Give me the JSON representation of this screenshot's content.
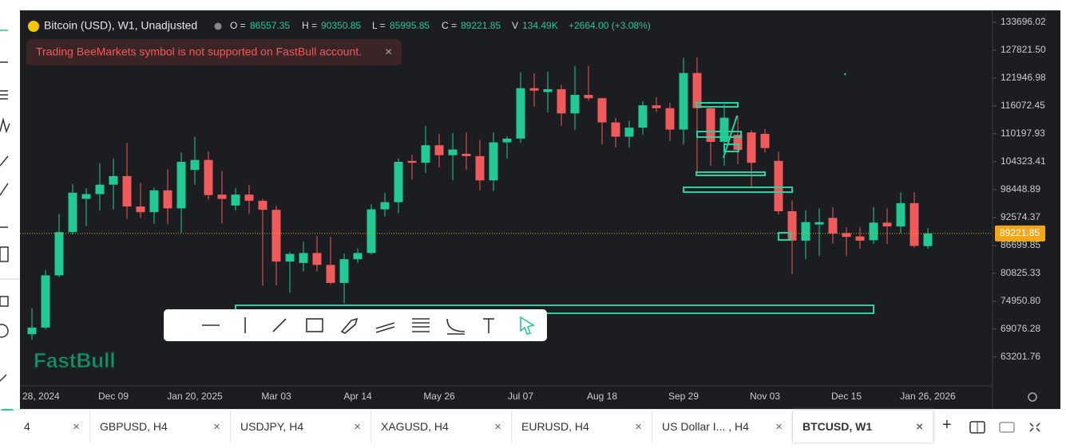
{
  "header": {
    "symbol": "Bitcoin (USD), W1, Unadjusted",
    "o_label": "O =",
    "o": "86557.35",
    "h_label": "H =",
    "h": "90350.85",
    "l_label": "L =",
    "l": "85995.85",
    "c_label": "C =",
    "c": "89221.85",
    "v_label": "V",
    "v": "134.49K",
    "change": "+2664.00 (+3.08%)"
  },
  "alert": "Trading BeeMarkets symbol is not supported on FastBull account.",
  "logo": "FastBull",
  "tabs": [
    "4",
    "GBPUSD, H4",
    "USDJPY, H4",
    "XAGUSD, H4",
    "EURUSD, H4",
    "US Dollar I... , H4",
    "BTCUSD, W1"
  ],
  "chart_data": {
    "type": "candlestick",
    "title": "Bitcoin (USD), W1, Unadjusted",
    "categories": [
      "28, 2024",
      null,
      null,
      null,
      null,
      null,
      "Dec 09",
      null,
      null,
      null,
      null,
      null,
      "Jan 20, 2025",
      null,
      null,
      null,
      null,
      null,
      "Mar 03",
      null,
      null,
      null,
      null,
      null,
      "Apr 14",
      null,
      null,
      null,
      null,
      null,
      "May 26",
      null,
      null,
      null,
      null,
      null,
      "Jul 07",
      null,
      null,
      null,
      null,
      null,
      "Aug 18",
      null,
      null,
      null,
      null,
      null,
      "Sep 29",
      null,
      null,
      null,
      null,
      null,
      "Nov 03",
      null,
      null,
      null,
      null,
      null,
      "Dec 15",
      null,
      null,
      null,
      null,
      null,
      "Jan 26, 2026"
    ],
    "open": [
      68000,
      69400,
      80400,
      89500,
      96500,
      97500,
      99500,
      101300,
      94900,
      93700,
      98300,
      94500,
      102600,
      104700,
      97400,
      95100,
      97400,
      96100,
      94200,
      83300,
      83000,
      85100,
      82600,
      78800,
      83800,
      85100,
      94300,
      95800,
      104500,
      104100,
      107800,
      105700,
      106000,
      105500,
      100400,
      108400,
      109200,
      119800,
      119000,
      119600,
      114500,
      118400,
      117700,
      112600,
      109600,
      111500,
      116200,
      115600,
      111100,
      123000,
      115600,
      108500,
      110000,
      110500,
      110200,
      104500,
      93900,
      87700,
      91100,
      92500,
      89300,
      88600,
      87800,
      91500,
      90700,
      95600,
      86557.35
    ],
    "high": [
      73500,
      81500,
      93300,
      99600,
      98700,
      104000,
      105000,
      108300,
      99900,
      98900,
      102700,
      106300,
      109600,
      106500,
      102400,
      98800,
      99500,
      96500,
      95000,
      85300,
      87500,
      88700,
      88500,
      85000,
      86100,
      95400,
      97800,
      105000,
      105800,
      111900,
      110200,
      110400,
      110500,
      108900,
      110500,
      109700,
      123200,
      122900,
      123300,
      120500,
      124500,
      124500,
      117800,
      113500,
      113000,
      117100,
      117900,
      116700,
      126200,
      126300,
      116000,
      116400,
      114000,
      111000,
      111200,
      106400,
      96200,
      94100,
      94500,
      94700,
      90500,
      90500,
      94800,
      94500,
      97900,
      97900,
      90350.85
    ],
    "low": [
      66800,
      69000,
      80000,
      89000,
      90800,
      94000,
      94300,
      92300,
      92500,
      91200,
      91200,
      89400,
      99500,
      96300,
      91300,
      94000,
      93300,
      78200,
      78300,
      76700,
      81200,
      81200,
      78500,
      74500,
      83000,
      84800,
      92800,
      93500,
      100600,
      102000,
      103100,
      100400,
      102600,
      98300,
      98200,
      105000,
      108300,
      115900,
      114700,
      111900,
      111000,
      117200,
      108000,
      107300,
      107300,
      110000,
      114800,
      108700,
      108000,
      102000,
      103500,
      103500,
      103800,
      98900,
      106300,
      93200,
      80600,
      83800,
      84500,
      87100,
      84500,
      86000,
      87000,
      87000,
      89200,
      86200,
      85995.85
    ],
    "close": [
      69400,
      80400,
      89500,
      97800,
      97500,
      99500,
      101300,
      94900,
      93700,
      98300,
      94500,
      104300,
      104700,
      97300,
      96500,
      97400,
      96100,
      94200,
      83300,
      84900,
      85100,
      82600,
      78800,
      83800,
      85100,
      94300,
      95800,
      104300,
      104100,
      107800,
      105700,
      106900,
      105500,
      100400,
      108400,
      109200,
      119800,
      119300,
      119600,
      114500,
      118400,
      117700,
      112600,
      109600,
      111500,
      116200,
      115600,
      111100,
      123000,
      115600,
      108500,
      113600,
      106800,
      104100,
      107200,
      93900,
      87700,
      91600,
      91600,
      89200,
      88500,
      87700,
      91500,
      90700,
      95600,
      86600,
      89221.85
    ],
    "up_color": "#22c993",
    "down_color": "#f05a5a",
    "last_price": 89221.85,
    "ylim": [
      57300,
      136200
    ],
    "yticks": [
      133696.02,
      {
        "value": 127821.5,
        "label": "127821.50"
      },
      121946.98,
      116072.45,
      110197.93,
      104323.41,
      98448.89,
      92574.37,
      86699.85,
      80825.33,
      {
        "value": 74950.8,
        "label": "74950.80"
      },
      69076.28,
      63201.76
    ]
  }
}
